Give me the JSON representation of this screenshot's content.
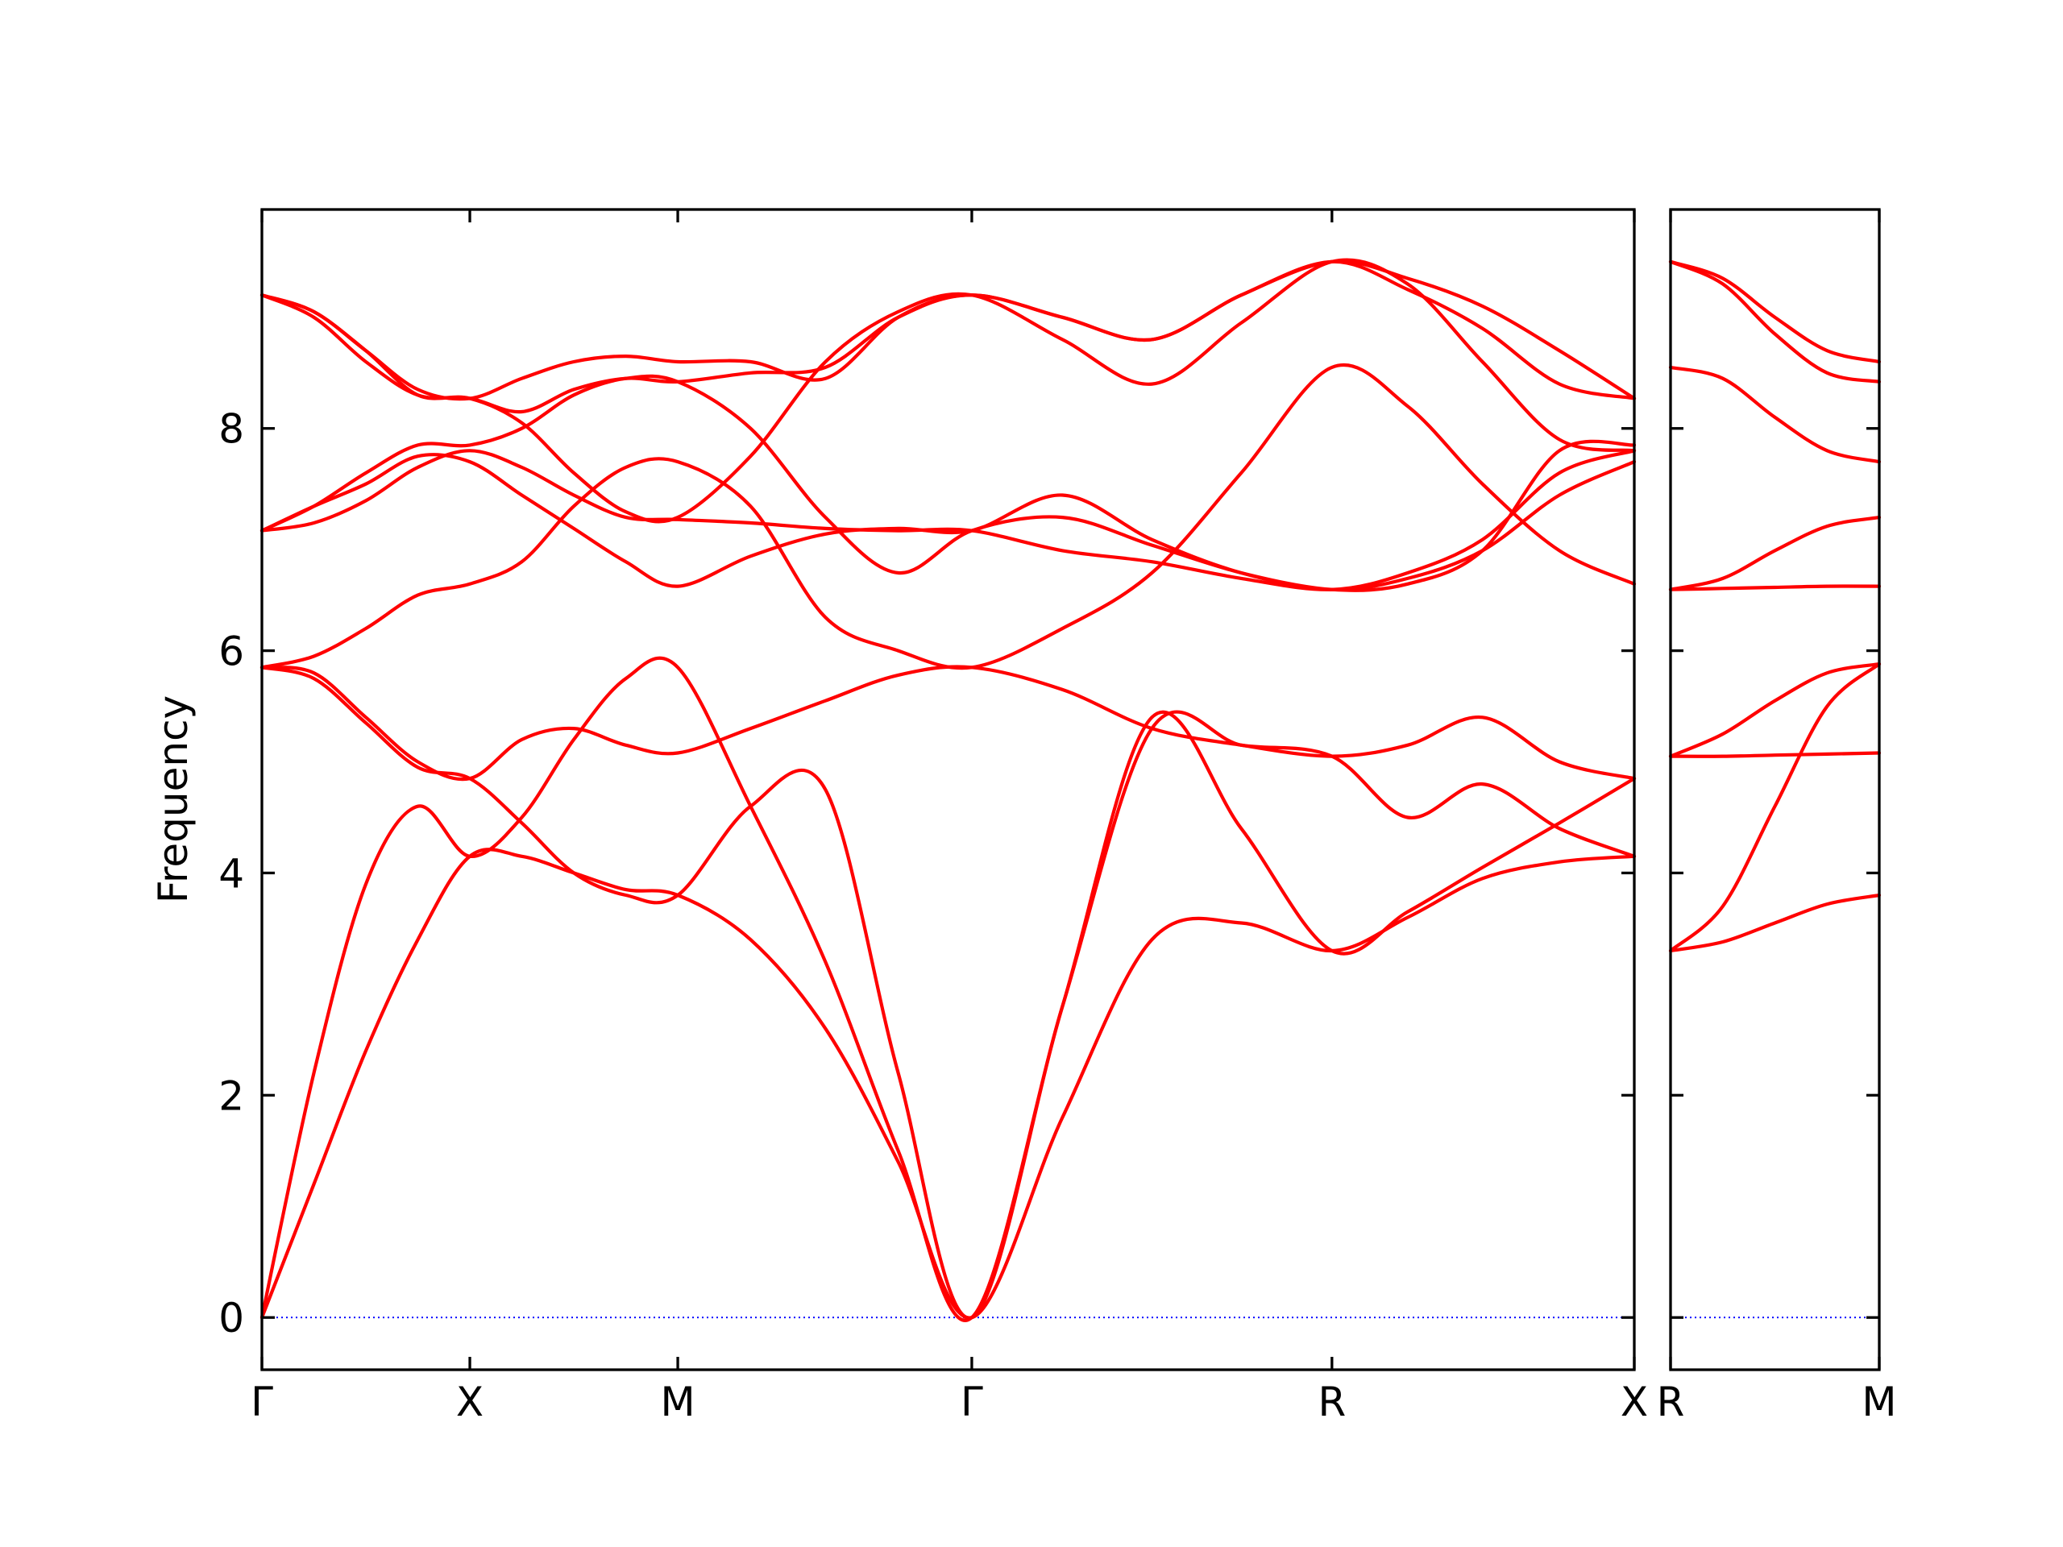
{
  "chart_data": {
    "type": "line",
    "ylabel": "Frequency",
    "ylim": [
      -0.47,
      9.97
    ],
    "yticks": [
      0,
      2,
      4,
      6,
      8
    ],
    "grid": false,
    "legend": "none",
    "colors": {
      "bands": "#ff0000",
      "zero_line": "#0000ff"
    },
    "panels": [
      {
        "name": "path-1",
        "xlim": [
          0,
          6.6
        ],
        "xticks": [
          {
            "x": 0,
            "label": "Γ"
          },
          {
            "x": 1,
            "label": "X"
          },
          {
            "x": 2,
            "label": "M"
          },
          {
            "x": 3.414,
            "label": "Γ"
          },
          {
            "x": 5.146,
            "label": "R"
          },
          {
            "x": 6.6,
            "label": "X"
          }
        ],
        "x": [
          0,
          0.25,
          0.5,
          0.75,
          1,
          1.25,
          1.5,
          1.75,
          2,
          2.35,
          2.71,
          3.06,
          3.414,
          3.85,
          4.28,
          4.71,
          5.146,
          5.51,
          5.87,
          6.24,
          6.6
        ],
        "series": [
          {
            "name": "band-1",
            "values": [
              0,
              1.2,
              2.4,
              3.4,
              4.15,
              4.15,
              4.0,
              3.85,
              3.8,
              3.4,
              2.6,
              1.4,
              0,
              1.8,
              3.4,
              3.55,
              3.3,
              3.6,
              3.95,
              4.1,
              4.15
            ]
          },
          {
            "name": "band-2",
            "values": [
              0,
              2.2,
              3.9,
              4.6,
              4.15,
              4.5,
              5.2,
              5.75,
              5.85,
              4.6,
              3.2,
              1.5,
              0,
              2.8,
              5.4,
              4.4,
              3.3,
              3.65,
              4.05,
              4.45,
              4.85
            ]
          },
          {
            "name": "band-3",
            "values": [
              5.85,
              5.75,
              5.35,
              4.95,
              4.85,
              4.45,
              4.0,
              3.8,
              3.8,
              4.6,
              4.75,
              2.2,
              0,
              2.8,
              5.3,
              5.15,
              5.05,
              4.5,
              4.8,
              4.4,
              4.15
            ]
          },
          {
            "name": "band-4",
            "values": [
              5.85,
              5.8,
              5.4,
              5.0,
              4.85,
              5.2,
              5.3,
              5.15,
              5.08,
              5.3,
              5.55,
              5.78,
              5.85,
              5.65,
              5.3,
              5.15,
              5.05,
              5.15,
              5.4,
              5.0,
              4.85
            ]
          },
          {
            "name": "band-5",
            "values": [
              5.85,
              5.95,
              6.2,
              6.5,
              6.6,
              6.8,
              7.3,
              7.65,
              7.7,
              7.3,
              6.3,
              6.0,
              5.85,
              6.2,
              6.7,
              7.6,
              8.55,
              8.2,
              7.5,
              6.9,
              6.6
            ]
          },
          {
            "name": "band-6",
            "values": [
              7.08,
              7.3,
              7.5,
              7.75,
              7.7,
              7.4,
              7.1,
              6.8,
              6.58,
              6.85,
              7.05,
              7.1,
              7.08,
              7.4,
              7.0,
              6.7,
              6.55,
              6.65,
              6.9,
              7.4,
              7.7
            ]
          },
          {
            "name": "band-7",
            "values": [
              7.08,
              7.15,
              7.35,
              7.65,
              7.8,
              7.65,
              7.4,
              7.2,
              7.18,
              7.15,
              7.1,
              7.08,
              7.08,
              6.9,
              6.8,
              6.65,
              6.55,
              6.7,
              7.0,
              7.6,
              7.8
            ]
          },
          {
            "name": "band-8",
            "values": [
              7.08,
              7.3,
              7.6,
              7.85,
              7.85,
              8.0,
              8.3,
              8.45,
              8.42,
              8.0,
              7.2,
              6.7,
              7.08,
              7.2,
              6.95,
              6.7,
              6.55,
              6.6,
              6.9,
              7.8,
              7.85
            ]
          },
          {
            "name": "band-9",
            "values": [
              9.2,
              9.05,
              8.7,
              8.3,
              8.27,
              8.05,
              7.6,
              7.25,
              7.2,
              7.75,
              8.6,
              9.05,
              9.2,
              8.8,
              8.4,
              8.95,
              9.5,
              9.3,
              8.6,
              7.9,
              7.8
            ]
          },
          {
            "name": "band-10",
            "values": [
              9.2,
              9.0,
              8.6,
              8.3,
              8.27,
              8.15,
              8.35,
              8.45,
              8.42,
              8.5,
              8.55,
              9.0,
              9.2,
              9.0,
              8.8,
              9.2,
              9.5,
              9.25,
              8.9,
              8.4,
              8.27
            ]
          },
          {
            "name": "band-11",
            "values": [
              9.2,
              9.05,
              8.7,
              8.35,
              8.27,
              8.45,
              8.6,
              8.65,
              8.6,
              8.6,
              8.45,
              9.0,
              9.2,
              9.0,
              8.8,
              9.2,
              9.5,
              9.35,
              9.1,
              8.7,
              8.27
            ]
          }
        ]
      },
      {
        "name": "path-2",
        "xlim": [
          0,
          1
        ],
        "xticks": [
          {
            "x": 0,
            "label": "R"
          },
          {
            "x": 1,
            "label": "M"
          }
        ],
        "x": [
          0,
          0.25,
          0.5,
          0.75,
          1
        ],
        "series": [
          {
            "name": "band-1",
            "values": [
              3.3,
              3.38,
              3.55,
              3.72,
              3.8
            ]
          },
          {
            "name": "band-2",
            "values": [
              3.3,
              3.7,
              4.6,
              5.5,
              5.88
            ]
          },
          {
            "name": "band-3",
            "values": [
              5.05,
              5.05,
              5.06,
              5.07,
              5.08
            ]
          },
          {
            "name": "band-4",
            "values": [
              5.05,
              5.25,
              5.55,
              5.8,
              5.88
            ]
          },
          {
            "name": "band-5",
            "values": [
              6.55,
              6.56,
              6.57,
              6.58,
              6.58
            ]
          },
          {
            "name": "band-6",
            "values": [
              6.55,
              6.65,
              6.9,
              7.12,
              7.2
            ]
          },
          {
            "name": "band-7",
            "values": [
              8.55,
              8.45,
              8.1,
              7.8,
              7.7
            ]
          },
          {
            "name": "band-8",
            "values": [
              9.5,
              9.3,
              8.85,
              8.5,
              8.42
            ]
          },
          {
            "name": "band-9",
            "values": [
              9.5,
              9.35,
              9.0,
              8.7,
              8.6
            ]
          }
        ]
      }
    ]
  }
}
